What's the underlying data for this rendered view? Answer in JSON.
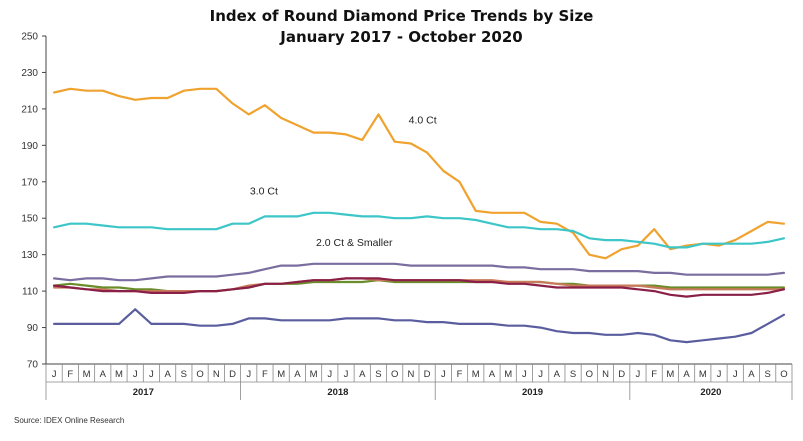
{
  "title_line1": "Index of Round Diamond Price Trends by Size",
  "title_line2": "January 2017 - October 2020",
  "source": "Source: IDEX Online Research",
  "chart_data": {
    "type": "line",
    "title": "Index of Round Diamond Price Trends by Size January 2017 - October 2020",
    "ylim": [
      70,
      250
    ],
    "yticks": [
      70,
      90,
      110,
      130,
      150,
      170,
      190,
      210,
      230,
      250
    ],
    "grid": false,
    "months": [
      "J",
      "F",
      "M",
      "A",
      "M",
      "J",
      "J",
      "A",
      "S",
      "O",
      "N",
      "D",
      "J",
      "F",
      "M",
      "A",
      "M",
      "J",
      "J",
      "A",
      "S",
      "O",
      "N",
      "D",
      "J",
      "F",
      "M",
      "A",
      "M",
      "J",
      "J",
      "A",
      "S",
      "O",
      "N",
      "D",
      "J",
      "F",
      "M",
      "A",
      "M",
      "J",
      "J",
      "A",
      "S",
      "O"
    ],
    "years": [
      {
        "label": "2017",
        "start": 0,
        "end": 11
      },
      {
        "label": "2018",
        "start": 12,
        "end": 23
      },
      {
        "label": "2019",
        "start": 24,
        "end": 35
      },
      {
        "label": "2020",
        "start": 36,
        "end": 45
      }
    ],
    "annotations": [
      {
        "text": "4.0 Ct",
        "series": 0,
        "at_index": 21
      },
      {
        "text": "3.0 Ct",
        "series": 1,
        "at_index": 13
      },
      {
        "text": "2.0 Ct & Smaller",
        "series": 2,
        "at_index": 18
      }
    ],
    "series": [
      {
        "color": "#f0a22e",
        "values": [
          219,
          221,
          220,
          220,
          217,
          215,
          216,
          216,
          220,
          221,
          221,
          213,
          207,
          212,
          205,
          201,
          197,
          197,
          196,
          193,
          207,
          192,
          191,
          186,
          176,
          170,
          154,
          153,
          153,
          153,
          148,
          147,
          142,
          130,
          128,
          133,
          135,
          144,
          133,
          135,
          136,
          135,
          138,
          143,
          148,
          147
        ]
      },
      {
        "color": "#3cc6c8",
        "values": [
          145,
          147,
          147,
          146,
          145,
          145,
          145,
          144,
          144,
          144,
          144,
          147,
          147,
          151,
          151,
          151,
          153,
          153,
          152,
          151,
          151,
          150,
          150,
          151,
          150,
          150,
          149,
          147,
          145,
          145,
          144,
          144,
          143,
          139,
          138,
          138,
          137,
          136,
          134,
          134,
          136,
          136,
          136,
          136,
          137,
          139
        ]
      },
      {
        "color": "#7a6d9f",
        "values": [
          117,
          116,
          117,
          117,
          116,
          116,
          117,
          118,
          118,
          118,
          118,
          119,
          120,
          122,
          124,
          124,
          125,
          125,
          125,
          125,
          125,
          125,
          124,
          124,
          124,
          124,
          124,
          124,
          123,
          123,
          122,
          122,
          122,
          121,
          121,
          121,
          121,
          120,
          120,
          119,
          119,
          119,
          119,
          119,
          119,
          120
        ]
      },
      {
        "color": "#6b8c2a",
        "values": [
          113,
          114,
          113,
          112,
          112,
          111,
          111,
          110,
          110,
          110,
          110,
          111,
          112,
          114,
          114,
          114,
          115,
          115,
          115,
          115,
          116,
          115,
          115,
          115,
          115,
          115,
          115,
          115,
          115,
          115,
          115,
          114,
          114,
          113,
          113,
          113,
          113,
          113,
          112,
          112,
          112,
          112,
          112,
          112,
          112,
          112
        ]
      },
      {
        "color": "#c97a5a",
        "values": [
          112,
          112,
          111,
          111,
          110,
          110,
          110,
          110,
          110,
          110,
          110,
          111,
          113,
          114,
          114,
          115,
          116,
          116,
          117,
          117,
          116,
          116,
          116,
          116,
          116,
          116,
          116,
          116,
          115,
          115,
          115,
          114,
          113,
          113,
          113,
          113,
          113,
          112,
          111,
          111,
          111,
          111,
          111,
          111,
          111,
          111
        ]
      },
      {
        "color": "#8a1f47",
        "values": [
          113,
          112,
          111,
          110,
          110,
          110,
          109,
          109,
          109,
          110,
          110,
          111,
          112,
          114,
          114,
          115,
          116,
          116,
          117,
          117,
          117,
          116,
          116,
          116,
          116,
          116,
          115,
          115,
          114,
          114,
          113,
          112,
          112,
          112,
          112,
          112,
          111,
          110,
          108,
          107,
          108,
          108,
          108,
          108,
          109,
          111
        ]
      },
      {
        "color": "#5a5e9e",
        "values": [
          92,
          92,
          92,
          92,
          92,
          100,
          92,
          92,
          92,
          91,
          91,
          92,
          95,
          95,
          94,
          94,
          94,
          94,
          95,
          95,
          95,
          94,
          94,
          93,
          93,
          92,
          92,
          92,
          91,
          91,
          90,
          88,
          87,
          87,
          86,
          86,
          87,
          86,
          83,
          82,
          83,
          84,
          85,
          87,
          92,
          97
        ]
      }
    ]
  }
}
